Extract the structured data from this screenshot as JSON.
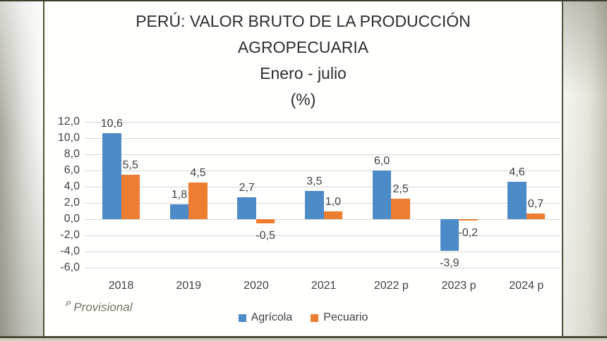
{
  "title": {
    "line1": "PERÚ: VALOR BRUTO DE LA PRODUCCIÓN",
    "line2": "AGROPECUARIA",
    "line3": "Enero - julio",
    "line4": "(%)"
  },
  "footnote": {
    "superscript": "P",
    "text": "Provisional"
  },
  "legend": [
    {
      "label": "Agrícola",
      "color": "#4d8bc8"
    },
    {
      "label": "Pecuario",
      "color": "#ed7d31"
    }
  ],
  "chart_data": {
    "type": "bar",
    "title": "PERÚ: VALOR BRUTO DE LA PRODUCCIÓN AGROPECUARIA Enero - julio (%)",
    "categories": [
      "2018",
      "2019",
      "2020",
      "2021",
      "2022 p",
      "2023 p",
      "2024 p"
    ],
    "series": [
      {
        "name": "Agrícola",
        "color": "#4d8bc8",
        "values": [
          10.6,
          1.8,
          2.7,
          3.5,
          6.0,
          -3.9,
          4.6
        ],
        "labels": [
          "10,6",
          "1,8",
          "2,7",
          "3,5",
          "6,0",
          "-3,9",
          "4,6"
        ]
      },
      {
        "name": "Pecuario",
        "color": "#ed7d31",
        "values": [
          5.5,
          4.5,
          -0.5,
          1.0,
          2.5,
          -0.2,
          0.7
        ],
        "labels": [
          "5,5",
          "4,5",
          "-0,5",
          "1,0",
          "2,5",
          "-0,2",
          "0,7"
        ]
      }
    ],
    "y_axis": {
      "min": -6.0,
      "max": 12.0,
      "step": 2.0,
      "tick_labels": [
        "12,0",
        "10,0",
        "8,0",
        "6,0",
        "4,0",
        "2,0",
        "0,0",
        "-2,0",
        "-4,0",
        "-6,0"
      ]
    },
    "grid": true,
    "legend_position": "bottom",
    "decimal_separator": ","
  }
}
